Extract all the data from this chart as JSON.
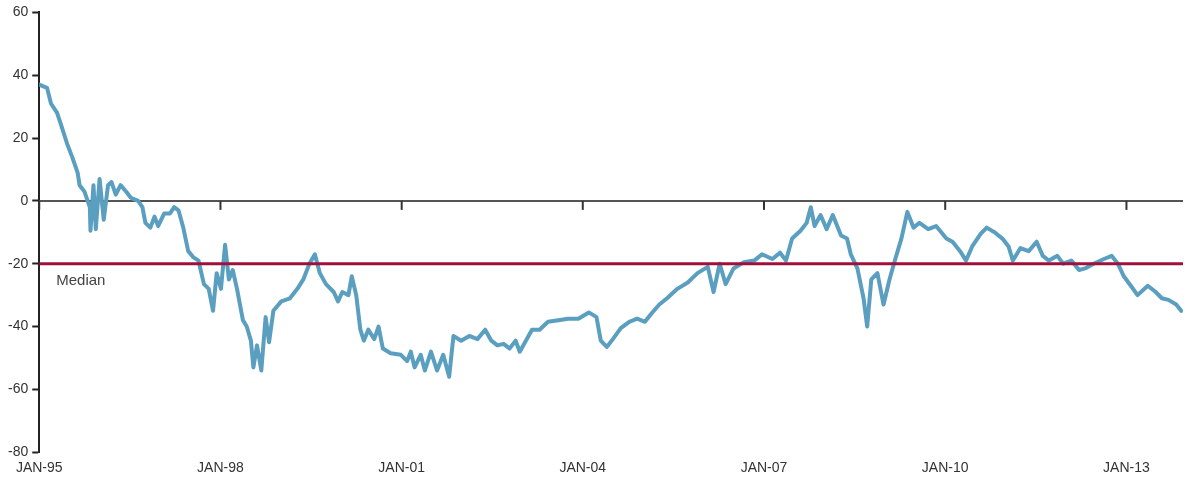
{
  "chart_data": {
    "type": "line",
    "x": [
      "1995-01-01",
      "1995-02-17",
      "1995-03-13",
      "1995-04-19",
      "1995-05-14",
      "1995-06-20",
      "1995-07-19",
      "1995-08-21",
      "1995-09-02",
      "1995-10-01",
      "1995-11-03",
      "1995-11-07",
      "1995-11-25",
      "1995-12-09",
      "1996-01-01",
      "1996-01-26",
      "1996-02-21",
      "1996-03-13",
      "1996-04-08",
      "1996-05-07",
      "1996-06-09",
      "1996-07-08",
      "1996-08-21",
      "1996-09-16",
      "1996-10-04",
      "1996-11-03",
      "1996-11-28",
      "1996-12-20",
      "1997-01-26",
      "1997-03-02",
      "1997-03-27",
      "1997-04-22",
      "1997-05-21",
      "1997-06-20",
      "1997-07-22",
      "1997-08-21",
      "1997-09-23",
      "1997-10-22",
      "1997-11-17",
      "1997-12-09",
      "1998-01-04",
      "1998-01-29",
      "1998-02-21",
      "1998-03-16",
      "1998-04-11",
      "1998-05-17",
      "1998-06-09",
      "1998-07-04",
      "1998-07-19",
      "1998-08-10",
      "1998-09-05",
      "1998-10-01",
      "1998-10-22",
      "1998-11-17",
      "1999-01-04",
      "1999-02-25",
      "1999-04-11",
      "1999-05-17",
      "1999-06-23",
      "1999-07-26",
      "1999-08-25",
      "1999-10-01",
      "1999-11-17",
      "1999-12-13",
      "2000-01-08",
      "2000-02-14",
      "2000-03-05",
      "2000-04-01",
      "2000-04-26",
      "2000-05-17",
      "2000-06-13",
      "2000-07-19",
      "2000-08-14",
      "2000-09-09",
      "2000-10-26",
      "2000-12-27",
      "2001-02-03",
      "2001-02-25",
      "2001-03-20",
      "2001-04-26",
      "2001-05-21",
      "2001-06-27",
      "2001-08-03",
      "2001-09-09",
      "2001-10-15",
      "2001-11-10",
      "2001-12-27",
      "2002-02-14",
      "2002-04-04",
      "2002-05-21",
      "2002-06-27",
      "2002-08-03",
      "2002-09-09",
      "2002-10-15",
      "2002-11-21",
      "2002-12-16",
      "2003-01-22",
      "2003-02-28",
      "2003-04-15",
      "2003-06-05",
      "2003-08-07",
      "2003-10-04",
      "2003-12-05",
      "2004-02-07",
      "2004-03-24",
      "2004-04-19",
      "2004-05-25",
      "2004-07-01",
      "2004-08-18",
      "2004-10-08",
      "2004-11-25",
      "2005-01-11",
      "2005-02-17",
      "2005-04-08",
      "2005-05-25",
      "2005-07-26",
      "2005-09-27",
      "2005-11-25",
      "2006-01-26",
      "2006-03-02",
      "2006-04-08",
      "2006-05-14",
      "2006-07-01",
      "2006-09-02",
      "2006-11-03",
      "2006-12-20",
      "2007-02-21",
      "2007-04-08",
      "2007-05-14",
      "2007-06-20",
      "2007-08-10",
      "2007-09-16",
      "2007-10-11",
      "2007-11-03",
      "2007-12-09",
      "2008-01-15",
      "2008-02-21",
      "2008-04-11",
      "2008-05-17",
      "2008-06-09",
      "2008-07-19",
      "2008-08-25",
      "2008-09-16",
      "2008-10-11",
      "2008-11-17",
      "2008-12-24",
      "2009-01-29",
      "2009-03-05",
      "2009-04-11",
      "2009-05-17",
      "2009-06-23",
      "2009-07-29",
      "2009-09-20",
      "2009-11-07",
      "2010-01-08",
      "2010-02-14",
      "2010-04-01",
      "2010-05-07",
      "2010-06-13",
      "2010-08-03",
      "2010-09-09",
      "2010-10-26",
      "2010-12-13",
      "2011-01-19",
      "2011-02-14",
      "2011-04-01",
      "2011-05-21",
      "2011-07-08",
      "2011-08-14",
      "2011-09-20",
      "2011-11-10",
      "2011-12-16",
      "2012-02-03",
      "2012-03-20",
      "2012-04-26",
      "2012-06-16",
      "2012-08-18",
      "2012-10-04",
      "2012-11-10",
      "2012-12-16",
      "2013-02-03",
      "2013-03-09",
      "2013-05-10",
      "2013-06-27",
      "2013-08-03",
      "2013-09-12",
      "2013-10-29",
      "2013-11-28"
    ],
    "series": [
      {
        "color": "#5a9ec0",
        "values": [
          37,
          36,
          31,
          28,
          24,
          18,
          14,
          9,
          5,
          3,
          -2,
          -9.5,
          5,
          -9,
          7,
          -6,
          5,
          6,
          2,
          5,
          3,
          1,
          0,
          -2,
          -7,
          -8.5,
          -5,
          -8,
          -4,
          -4,
          -2,
          -3,
          -8.5,
          -16,
          -18,
          -19,
          -26.5,
          -28,
          -35,
          -23,
          -28,
          -14,
          -25,
          -22,
          -28,
          -38,
          -40,
          -44.5,
          -53,
          -46,
          -54,
          -37,
          -45,
          -35,
          -32,
          -31,
          -28,
          -25,
          -20,
          -17,
          -23,
          -26.5,
          -29,
          -32,
          -29,
          -30,
          -24,
          -30,
          -41,
          -44.5,
          -41,
          -44,
          -40,
          -47,
          -48.5,
          -49,
          -51,
          -48,
          -53,
          -49,
          -54,
          -48,
          -54,
          -49,
          -56,
          -43,
          -44.5,
          -43,
          -44,
          -41,
          -44.5,
          -46,
          -45.5,
          -47,
          -44.5,
          -48,
          -44.5,
          -41,
          -41,
          -38.5,
          -38,
          -37.5,
          -37.5,
          -35.5,
          -37,
          -44.5,
          -46.5,
          -44,
          -40.5,
          -38.5,
          -37.5,
          -38.5,
          -36,
          -33,
          -31,
          -28,
          -26,
          -23,
          -21,
          -29,
          -20,
          -26.5,
          -21.5,
          -19.5,
          -19,
          -17,
          -18.5,
          -16.5,
          -19,
          -12,
          -9.5,
          -7,
          -2,
          -8,
          -4.5,
          -9,
          -4.5,
          -11,
          -12,
          -17,
          -21.5,
          -31,
          -40,
          -25,
          -23,
          -33,
          -25,
          -18.5,
          -12,
          -3.5,
          -8.5,
          -7,
          -9,
          -8,
          -12,
          -13,
          -16,
          -19,
          -14.5,
          -10.5,
          -8.5,
          -10,
          -12,
          -14.5,
          -19,
          -15,
          -16,
          -13,
          -17.5,
          -19,
          -17.5,
          -20,
          -19,
          -22,
          -21.5,
          -20,
          -18.5,
          -17.5,
          -20,
          -24,
          -27.5,
          -30,
          -27,
          -29,
          -31,
          -31.5,
          -33,
          -35
        ]
      }
    ],
    "xlim": [
      "1995-01-01",
      "2013-12-09"
    ],
    "xticks": [
      {
        "value": "1995-01",
        "label": "JAN-95"
      },
      {
        "value": "1998-01",
        "label": "JAN-98"
      },
      {
        "value": "2001-01",
        "label": "JAN-01"
      },
      {
        "value": "2004-01",
        "label": "JAN-04"
      },
      {
        "value": "2007-01",
        "label": "JAN-07"
      },
      {
        "value": "2010-01",
        "label": "JAN-10"
      },
      {
        "value": "2013-01",
        "label": "JAN-13"
      }
    ],
    "ylim": [
      -80,
      60
    ],
    "yticks": [
      -80,
      -60,
      -40,
      -20,
      0,
      20,
      40,
      60
    ],
    "ref_lines": [
      {
        "axis": "y",
        "value": -20,
        "label": "Median",
        "color": "#a0103c"
      }
    ],
    "grid": false,
    "legend": false,
    "marker": "none",
    "line_style": "solid"
  }
}
